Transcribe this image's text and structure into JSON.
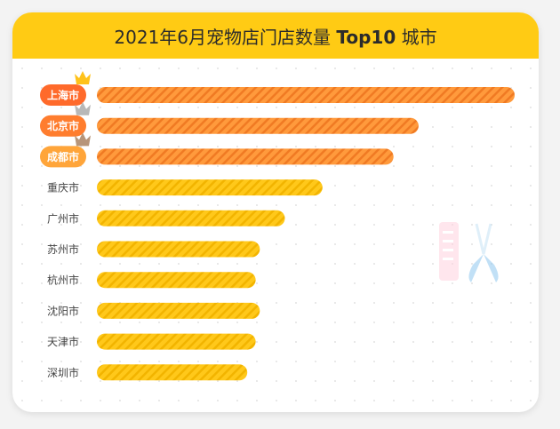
{
  "chart_data": {
    "type": "bar",
    "orientation": "horizontal",
    "title_parts": [
      "2021年6月宠物店门店数量 ",
      "Top10",
      " 城市"
    ],
    "categories": [
      "上海市",
      "北京市",
      "成都市",
      "重庆市",
      "广州市",
      "苏州市",
      "杭州市",
      "沈阳市",
      "天津市",
      "深圳市"
    ],
    "values": [
      100,
      77,
      71,
      54,
      45,
      39,
      38,
      39,
      38,
      36
    ],
    "xlim": [
      0,
      100
    ],
    "highlight_top": 3,
    "grid": false,
    "legend": "none"
  },
  "colors": {
    "header": "#ffcb14",
    "bar_top": "#ff9a3c",
    "bar_top_stripe": "#f07a23",
    "bar_rest": "#ffc81a",
    "bar_rest_stripe": "#f2b400",
    "label_pill_1": "#ff6a2b",
    "label_pill_2": "#ff7d2e",
    "label_pill_3": "#ffa53a",
    "crown_gold": "#ffc21a",
    "crown_silver": "#b8b8b8",
    "crown_bronze": "#b7957a"
  },
  "icons": [
    "crown-icon",
    "scissors-icon",
    "comb-icon"
  ]
}
